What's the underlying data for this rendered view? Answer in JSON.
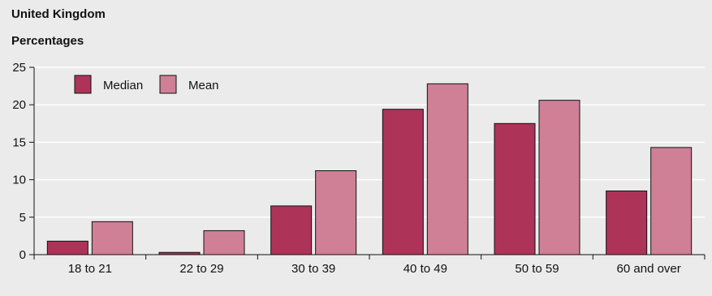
{
  "chart_data": {
    "type": "bar",
    "title": "United Kingdom",
    "subtitle": "Percentages",
    "categories": [
      "18 to 21",
      "22 to 29",
      "30 to 39",
      "40 to 49",
      "50 to 59",
      "60 and over"
    ],
    "series": [
      {
        "name": "Median",
        "color": "#ae3358",
        "values": [
          1.8,
          0.3,
          6.5,
          19.4,
          17.5,
          8.5
        ]
      },
      {
        "name": "Mean",
        "color": "#cf7f96",
        "values": [
          4.4,
          3.2,
          11.2,
          22.8,
          20.6,
          14.3
        ]
      }
    ],
    "ylim": [
      0,
      25
    ],
    "yticks": [
      0,
      5,
      10,
      15,
      20,
      25
    ],
    "grid": true,
    "legend_position": "top-left"
  }
}
